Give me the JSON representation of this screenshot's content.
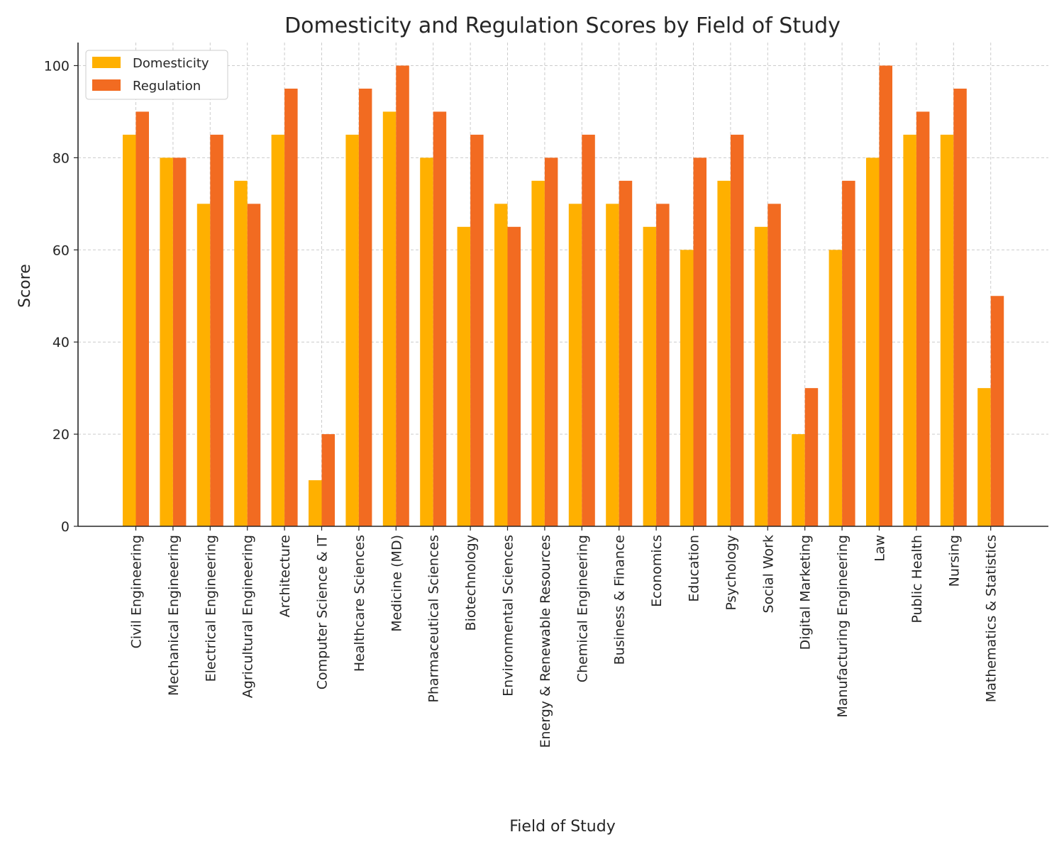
{
  "chart_data": {
    "type": "bar",
    "title": "Domesticity and Regulation Scores by Field of Study",
    "xlabel": "Field of Study",
    "ylabel": "Score",
    "ylim": [
      0,
      105
    ],
    "yticks": [
      0,
      20,
      40,
      60,
      80,
      100
    ],
    "grid": true,
    "legend_position": "top-left",
    "categories": [
      "Civil Engineering",
      "Mechanical Engineering",
      "Electrical Engineering",
      "Agricultural Engineering",
      "Architecture",
      "Computer Science & IT",
      "Healthcare Sciences",
      "Medicine (MD)",
      "Pharmaceutical Sciences",
      "Biotechnology",
      "Environmental Sciences",
      "Energy & Renewable Resources",
      "Chemical Engineering",
      "Business & Finance",
      "Economics",
      "Education",
      "Psychology",
      "Social Work",
      "Digital Marketing",
      "Manufacturing Engineering",
      "Law",
      "Public Health",
      "Nursing",
      "Mathematics & Statistics"
    ],
    "series": [
      {
        "name": "Domesticity",
        "color": "#FFB000",
        "values": [
          85,
          80,
          70,
          75,
          85,
          10,
          85,
          90,
          80,
          65,
          70,
          75,
          70,
          70,
          65,
          60,
          75,
          65,
          20,
          60,
          80,
          85,
          85,
          30
        ]
      },
      {
        "name": "Regulation",
        "color": "#F26B21",
        "values": [
          90,
          80,
          85,
          70,
          95,
          20,
          95,
          100,
          90,
          85,
          65,
          80,
          85,
          75,
          70,
          80,
          85,
          70,
          30,
          75,
          100,
          90,
          95,
          50
        ]
      }
    ]
  }
}
